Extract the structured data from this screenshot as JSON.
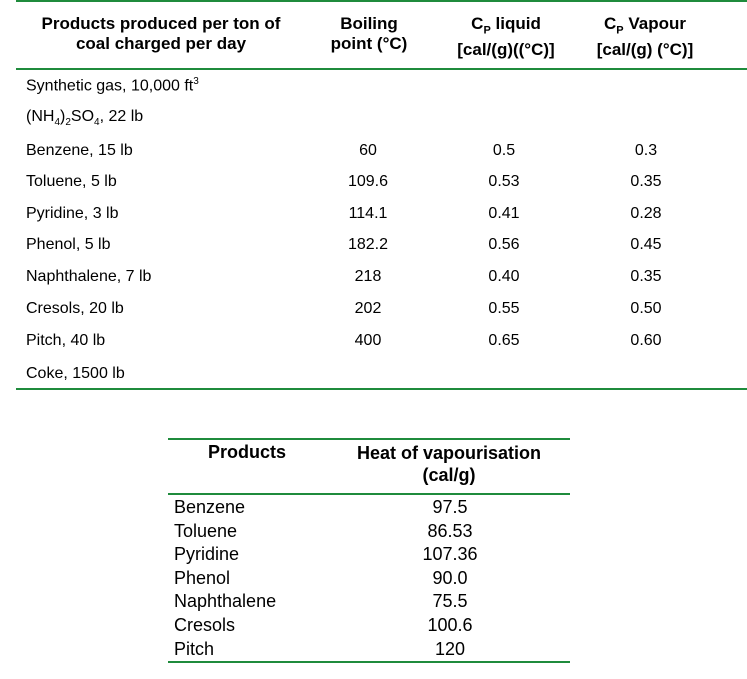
{
  "table1": {
    "headers": {
      "products": [
        "Products produced per ton of",
        "coal charged per day"
      ],
      "boiling": [
        "Boiling",
        "point (°C)"
      ],
      "cp_liquid": [
        "C",
        "P",
        " liquid",
        "[cal/(g)((°C)]"
      ],
      "cp_vapour": [
        "C",
        "P",
        " Vapour",
        "[cal/(g) (°C)]"
      ]
    },
    "rows": [
      {
        "label": [
          "Synthetic gas, 10,000 ft",
          "3"
        ]
      },
      {
        "label": [
          "(NH",
          "4",
          ")",
          "2",
          "SO",
          "4",
          ", 22 lb"
        ]
      },
      {
        "label": "Benzene, 15 lb",
        "bp": "60",
        "cpl": "0.5",
        "cpv": "0.3"
      },
      {
        "label": "Toluene, 5 lb",
        "bp": "109.6",
        "cpl": "0.53",
        "cpv": "0.35"
      },
      {
        "label": "Pyridine, 3 lb",
        "bp": "114.1",
        "cpl": "0.41",
        "cpv": "0.28"
      },
      {
        "label": "Phenol, 5 lb",
        "bp": "182.2",
        "cpl": "0.56",
        "cpv": "0.45"
      },
      {
        "label": "Naphthalene, 7 lb",
        "bp": "218",
        "cpl": "0.40",
        "cpv": "0.35"
      },
      {
        "label": "Cresols, 20 lb",
        "bp": "202",
        "cpl": "0.55",
        "cpv": "0.50"
      },
      {
        "label": "Pitch, 40 lb",
        "bp": "400",
        "cpl": "0.65",
        "cpv": "0.60"
      },
      {
        "label": "Coke, 1500 lb"
      }
    ]
  },
  "table2": {
    "headers": {
      "products": "Products",
      "heat": [
        "Heat of vapourisation",
        "(cal/g)"
      ]
    },
    "rows": [
      {
        "product": "Benzene",
        "value": "97.5"
      },
      {
        "product": "Toluene",
        "value": "86.53"
      },
      {
        "product": "Pyridine",
        "value": "107.36"
      },
      {
        "product": "Phenol",
        "value": "90.0"
      },
      {
        "product": "Naphthalene",
        "value": "75.5"
      },
      {
        "product": "Cresols",
        "value": "100.6"
      },
      {
        "product": "Pitch",
        "value": "120"
      }
    ]
  },
  "colors": {
    "rule": "#1f8b3c"
  }
}
